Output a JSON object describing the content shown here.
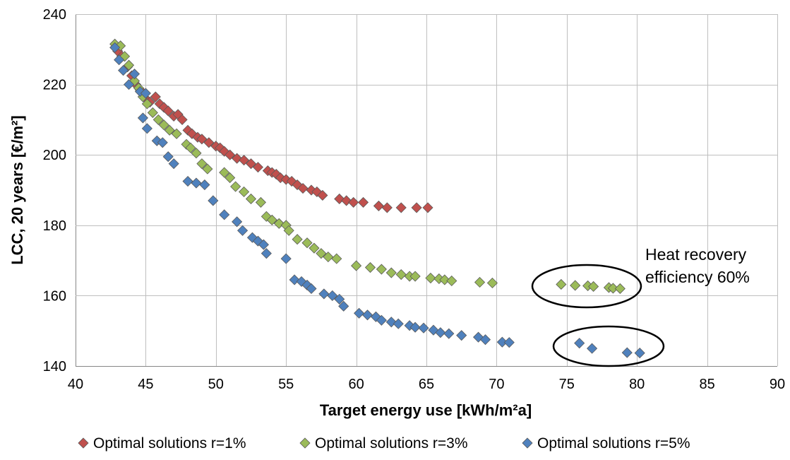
{
  "chart_data": {
    "type": "scatter",
    "xlabel": "Target energy use [kWh/m²a]",
    "ylabel": "LCC, 20 years [€/m²]",
    "xlim": [
      40,
      90
    ],
    "ylim": [
      140,
      240
    ],
    "x_ticks": [
      40,
      45,
      50,
      55,
      60,
      65,
      70,
      75,
      80,
      85,
      90
    ],
    "y_ticks": [
      140,
      160,
      180,
      200,
      220,
      240
    ],
    "grid": true,
    "legend_position": "bottom",
    "marker": "diamond",
    "annotation": [
      "Heat recovery",
      "efficiency 60%"
    ],
    "series": [
      {
        "name": "Optimal solutions r=1%",
        "color": "#c0504d",
        "points": [
          [
            43.0,
            229.5
          ],
          [
            43.3,
            228.0
          ],
          [
            43.7,
            225.0
          ],
          [
            44.0,
            222.5
          ],
          [
            44.3,
            220.0
          ],
          [
            44.6,
            218.5
          ],
          [
            45.0,
            216.0
          ],
          [
            45.3,
            215.0
          ],
          [
            45.7,
            216.5
          ],
          [
            46.0,
            214.5
          ],
          [
            46.3,
            213.5
          ],
          [
            46.6,
            212.5
          ],
          [
            47.0,
            211.0
          ],
          [
            47.3,
            211.5
          ],
          [
            47.6,
            210.0
          ],
          [
            48.0,
            207.0
          ],
          [
            48.3,
            206.0
          ],
          [
            48.7,
            205.0
          ],
          [
            49.0,
            204.5
          ],
          [
            49.5,
            203.5
          ],
          [
            50.0,
            202.5
          ],
          [
            50.3,
            202.0
          ],
          [
            50.6,
            201.0
          ],
          [
            51.0,
            200.0
          ],
          [
            51.5,
            199.0
          ],
          [
            52.0,
            198.5
          ],
          [
            52.5,
            197.5
          ],
          [
            53.0,
            196.5
          ],
          [
            53.7,
            195.5
          ],
          [
            54.0,
            195.0
          ],
          [
            54.3,
            194.5
          ],
          [
            54.6,
            193.5
          ],
          [
            55.0,
            193.0
          ],
          [
            55.4,
            192.5
          ],
          [
            55.8,
            191.5
          ],
          [
            56.2,
            190.5
          ],
          [
            56.8,
            190.0
          ],
          [
            57.2,
            189.5
          ],
          [
            57.6,
            188.5
          ],
          [
            58.8,
            187.5
          ],
          [
            59.3,
            187.0
          ],
          [
            59.8,
            186.5
          ],
          [
            60.5,
            186.5
          ],
          [
            61.6,
            185.5
          ],
          [
            62.2,
            185.0
          ],
          [
            63.2,
            185.0
          ],
          [
            64.3,
            185.0
          ],
          [
            65.1,
            185.0
          ]
        ]
      },
      {
        "name": "Optimal solutions r=3%",
        "color": "#9bbb59",
        "points": [
          [
            42.8,
            231.5
          ],
          [
            43.2,
            231.0
          ],
          [
            43.5,
            228.0
          ],
          [
            43.8,
            225.5
          ],
          [
            44.2,
            221.0
          ],
          [
            44.5,
            219.0
          ],
          [
            44.8,
            216.5
          ],
          [
            45.1,
            214.5
          ],
          [
            45.5,
            212.0
          ],
          [
            45.9,
            210.0
          ],
          [
            46.3,
            208.5
          ],
          [
            46.7,
            207.0
          ],
          [
            47.2,
            206.0
          ],
          [
            47.9,
            203.0
          ],
          [
            48.2,
            202.0
          ],
          [
            48.6,
            200.5
          ],
          [
            49.0,
            197.5
          ],
          [
            49.4,
            196.0
          ],
          [
            50.6,
            195.0
          ],
          [
            51.0,
            193.5
          ],
          [
            51.4,
            191.0
          ],
          [
            52.0,
            189.5
          ],
          [
            52.5,
            187.5
          ],
          [
            53.2,
            186.5
          ],
          [
            53.6,
            182.5
          ],
          [
            54.0,
            181.5
          ],
          [
            54.5,
            180.5
          ],
          [
            55.0,
            180.0
          ],
          [
            55.2,
            178.5
          ],
          [
            55.8,
            176.0
          ],
          [
            56.5,
            175.0
          ],
          [
            57.0,
            173.5
          ],
          [
            57.5,
            172.0
          ],
          [
            58.0,
            171.0
          ],
          [
            58.6,
            170.5
          ],
          [
            60.0,
            168.5
          ],
          [
            61.0,
            168.0
          ],
          [
            61.8,
            167.5
          ],
          [
            62.5,
            166.5
          ],
          [
            63.2,
            166.0
          ],
          [
            63.8,
            165.5
          ],
          [
            64.2,
            165.5
          ],
          [
            65.3,
            165.0
          ],
          [
            65.9,
            164.8
          ],
          [
            66.3,
            164.5
          ],
          [
            66.8,
            164.2
          ],
          [
            68.8,
            163.8
          ],
          [
            69.7,
            163.6
          ],
          [
            74.6,
            163.2
          ],
          [
            75.6,
            162.9
          ],
          [
            76.5,
            162.8
          ],
          [
            76.9,
            162.6
          ],
          [
            78.0,
            162.3
          ],
          [
            78.3,
            162.1
          ],
          [
            78.8,
            162.0
          ]
        ]
      },
      {
        "name": "Optimal solutions r=5%",
        "color": "#4f81bd",
        "points": [
          [
            42.8,
            230.5
          ],
          [
            43.1,
            227.0
          ],
          [
            43.4,
            224.0
          ],
          [
            43.8,
            220.0
          ],
          [
            44.2,
            223.0
          ],
          [
            44.6,
            218.0
          ],
          [
            45.0,
            217.5
          ],
          [
            44.8,
            210.5
          ],
          [
            45.1,
            207.5
          ],
          [
            45.8,
            204.0
          ],
          [
            46.2,
            203.5
          ],
          [
            46.6,
            199.5
          ],
          [
            47.0,
            197.5
          ],
          [
            48.0,
            192.5
          ],
          [
            48.6,
            192.0
          ],
          [
            49.2,
            191.5
          ],
          [
            49.8,
            187.0
          ],
          [
            50.6,
            183.0
          ],
          [
            51.5,
            181.0
          ],
          [
            51.9,
            178.5
          ],
          [
            52.6,
            176.5
          ],
          [
            53.0,
            175.5
          ],
          [
            53.4,
            174.5
          ],
          [
            53.6,
            172.0
          ],
          [
            55.0,
            170.5
          ],
          [
            55.6,
            164.5
          ],
          [
            56.1,
            164.0
          ],
          [
            56.5,
            163.0
          ],
          [
            56.8,
            162.0
          ],
          [
            57.7,
            160.5
          ],
          [
            58.3,
            160.0
          ],
          [
            58.8,
            159.0
          ],
          [
            59.1,
            157.0
          ],
          [
            60.2,
            155.0
          ],
          [
            60.8,
            154.5
          ],
          [
            61.4,
            154.0
          ],
          [
            61.8,
            153.0
          ],
          [
            62.5,
            152.5
          ],
          [
            63.0,
            152.0
          ],
          [
            63.8,
            151.5
          ],
          [
            64.2,
            151.0
          ],
          [
            64.8,
            150.8
          ],
          [
            65.5,
            150.2
          ],
          [
            66.0,
            149.5
          ],
          [
            66.6,
            149.2
          ],
          [
            67.5,
            148.7
          ],
          [
            68.7,
            148.2
          ],
          [
            69.2,
            147.5
          ],
          [
            70.4,
            146.8
          ],
          [
            70.9,
            146.7
          ],
          [
            75.9,
            146.5
          ],
          [
            76.8,
            145.0
          ],
          [
            79.3,
            143.8
          ],
          [
            80.2,
            143.7
          ]
        ]
      }
    ]
  }
}
